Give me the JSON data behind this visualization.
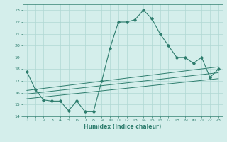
{
  "x": [
    0,
    1,
    2,
    3,
    4,
    5,
    6,
    7,
    8,
    9,
    10,
    11,
    12,
    13,
    14,
    15,
    16,
    17,
    18,
    19,
    20,
    21,
    22,
    23
  ],
  "y_main": [
    17.8,
    16.3,
    15.4,
    15.3,
    15.3,
    14.5,
    15.3,
    14.4,
    14.4,
    17.0,
    19.8,
    22.0,
    22.0,
    22.2,
    23.0,
    22.3,
    21.0,
    20.0,
    19.0,
    19.0,
    18.5,
    19.0,
    17.3,
    18.0
  ],
  "trend1_x": [
    0,
    23
  ],
  "trend1_y": [
    16.2,
    18.2
  ],
  "trend2_x": [
    0,
    23
  ],
  "trend2_y": [
    15.9,
    17.7
  ],
  "trend3_x": [
    0,
    23
  ],
  "trend3_y": [
    15.5,
    17.2
  ],
  "line_color": "#2e7d6e",
  "bg_color": "#d4eeeb",
  "grid_color": "#b0d8d4",
  "xlabel": "Humidex (Indice chaleur)",
  "xlim": [
    -0.5,
    23.5
  ],
  "ylim": [
    14,
    23.5
  ],
  "yticks": [
    14,
    15,
    16,
    17,
    18,
    19,
    20,
    21,
    22,
    23
  ],
  "xticks": [
    0,
    1,
    2,
    3,
    4,
    5,
    6,
    7,
    8,
    9,
    10,
    11,
    12,
    13,
    14,
    15,
    16,
    17,
    18,
    19,
    20,
    21,
    22,
    23
  ]
}
